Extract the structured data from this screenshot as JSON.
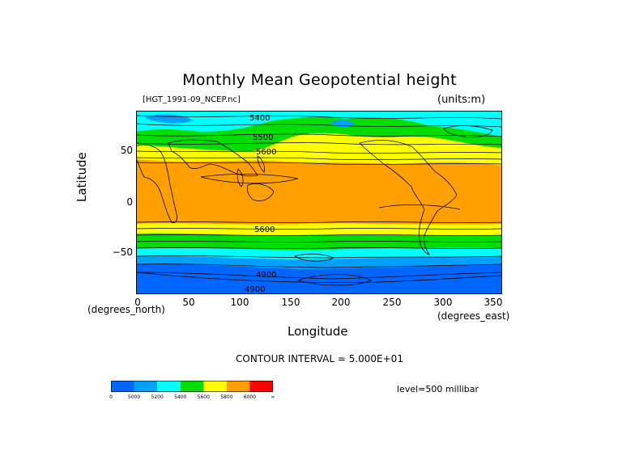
{
  "title": "Monthly Mean Geopotential height",
  "file_label": "[HGT_1991-09_NCEP.nc]",
  "units_label": "(units:m)",
  "y_axis": {
    "title": "Latitude",
    "units": "(degrees_north)",
    "ticks": [
      "50",
      "0",
      "−50"
    ]
  },
  "x_axis": {
    "title": "Longitude",
    "units": "(degrees_east)",
    "ticks": [
      "0",
      "50",
      "100",
      "150",
      "200",
      "250",
      "300",
      "350"
    ]
  },
  "contour_interval": "CONTOUR INTERVAL = 5.000E+01",
  "level": "level=500 millibar",
  "contour_labels": [
    "5400",
    "5500",
    "5600",
    "5600",
    "4900",
    "4900"
  ],
  "colorbar": {
    "colors": [
      "#0066ff",
      "#00a0ff",
      "#00ffff",
      "#00dd00",
      "#ffff00",
      "#ffa000",
      "#ff0000"
    ],
    "tick_labels": [
      "0",
      "5000",
      "5200",
      "5400",
      "5600",
      "5800",
      "6000",
      "∞"
    ]
  },
  "map_colors": {
    "band_blue": "#0066ff",
    "band_lightblue": "#00a0ff",
    "band_cyan": "#00ffff",
    "band_green": "#00dd00",
    "band_yellow": "#ffff00",
    "band_orange": "#ffa000"
  }
}
